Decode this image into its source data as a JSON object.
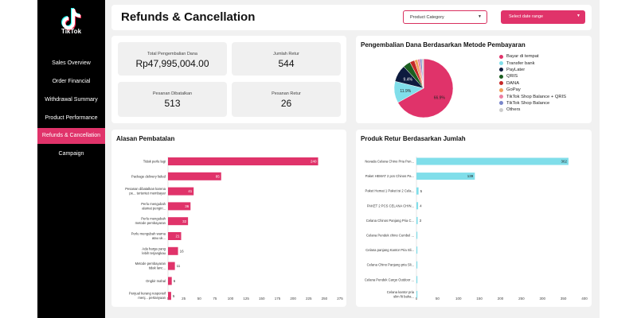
{
  "app": {
    "brand": "TikTok"
  },
  "nav": [
    {
      "label": "Sales Overview",
      "active": false
    },
    {
      "label": "Order Financial",
      "active": false
    },
    {
      "label": "Withdrawal Summary",
      "active": false
    },
    {
      "label": "Product Performance",
      "active": false
    },
    {
      "label": "Refunds & Cancellation",
      "active": true
    },
    {
      "label": "Campaign",
      "active": false
    }
  ],
  "header": {
    "title": "Refunds & Cancellation",
    "category_label": "Product Category",
    "date_label": "Select date range"
  },
  "kpis": [
    {
      "label": "Total Pengembalian Dana",
      "value": "Rp47,995,004.00"
    },
    {
      "label": "Jumlah Retur",
      "value": "544"
    },
    {
      "label": "Pesanan Dibatalkan",
      "value": "513"
    },
    {
      "label": "Pesanan Retur",
      "value": "26"
    }
  ],
  "pie_title": "Pengembalian Dana Berdasarkan Metode Pembayaran",
  "bar1_title": "Alasan Pembatalan",
  "bar2_title": "Produk Retur Berdasarkan Jumlah",
  "colors": {
    "accent": "#e0336a",
    "cyan": "#80deea"
  },
  "chart_data": [
    {
      "type": "pie",
      "title": "Pengembalian Dana Berdasarkan Metode Pembayaran",
      "labels": [
        "Bayar di tempat",
        "Transfer bank",
        "PayLater",
        "QRIS",
        "DANA",
        "GoPay",
        "TikTok Shop Balance + QRIS",
        "TikTok Shop Balance",
        "Others"
      ],
      "values": [
        66.9,
        11.9,
        9.4,
        4.1,
        2.6,
        1.8,
        1.3,
        1.0,
        1.0
      ],
      "slice_labels": [
        "66.9%",
        "11.9%",
        "9.4%",
        "",
        "",
        "",
        "",
        "",
        ""
      ],
      "colors": [
        "#e0336a",
        "#80deea",
        "#0d1b3e",
        "#1b5e20",
        "#c62828",
        "#f0a05a",
        "#ec7fa3",
        "#7986cb",
        "#cccccc"
      ]
    },
    {
      "type": "bar",
      "orientation": "horizontal",
      "title": "Alasan Pembatalan",
      "categories": [
        "Tidak perlu lagi",
        "Package delivery failed",
        "Pesanan dibatalkan karena pe... tertentet membayar",
        "Perlu mengubah alamat pengiri...",
        "Perlu mengubah metode pembayaran",
        "Perlu mengubah warna atau uk...",
        "Ada harga yang lebih terjangkau",
        "Metode pembayaran tidak lanc...",
        "Ongkir mahal",
        "Penjual kurang responsif menj... pertanyaan"
      ],
      "values": [
        240,
        85,
        41,
        36,
        32,
        21,
        16,
        11,
        6,
        5
      ],
      "xlim": [
        0,
        275
      ],
      "xticks": [
        0,
        25,
        50,
        75,
        100,
        125,
        150,
        175,
        200,
        225,
        250,
        275
      ],
      "color": "#e0336a"
    },
    {
      "type": "bar",
      "orientation": "horizontal",
      "title": "Produk Retur Berdasarkan Jumlah",
      "categories": [
        "Nevada Celana Chino Pria Pen...",
        "Paket HEMAT 2 pcs Chinos Pa...",
        "Paket Hemat 1 Paket isi 2 Cela...",
        "PAKET 2 PCS CELANA CHIN...",
        "Celana Chinos Panjang Pria C...",
        "Celana Pendek chino Cumbel ...",
        "Celana panjang Kantor Pria Sli...",
        "Celana Chino Panjang pria Sli...",
        "Celana Pendek Cargo Outdoor ...",
        "Celana kantor pria slim fit baha..."
      ],
      "values": [
        362,
        139,
        5,
        4,
        3,
        1,
        1,
        1,
        1,
        1
      ],
      "value_labels": [
        "362",
        "139",
        "5",
        "4",
        "3",
        "",
        "",
        "",
        "",
        ""
      ],
      "xlim": [
        0,
        400
      ],
      "xticks": [
        0,
        50,
        100,
        150,
        200,
        250,
        300,
        350,
        400
      ],
      "color": "#80deea"
    }
  ]
}
